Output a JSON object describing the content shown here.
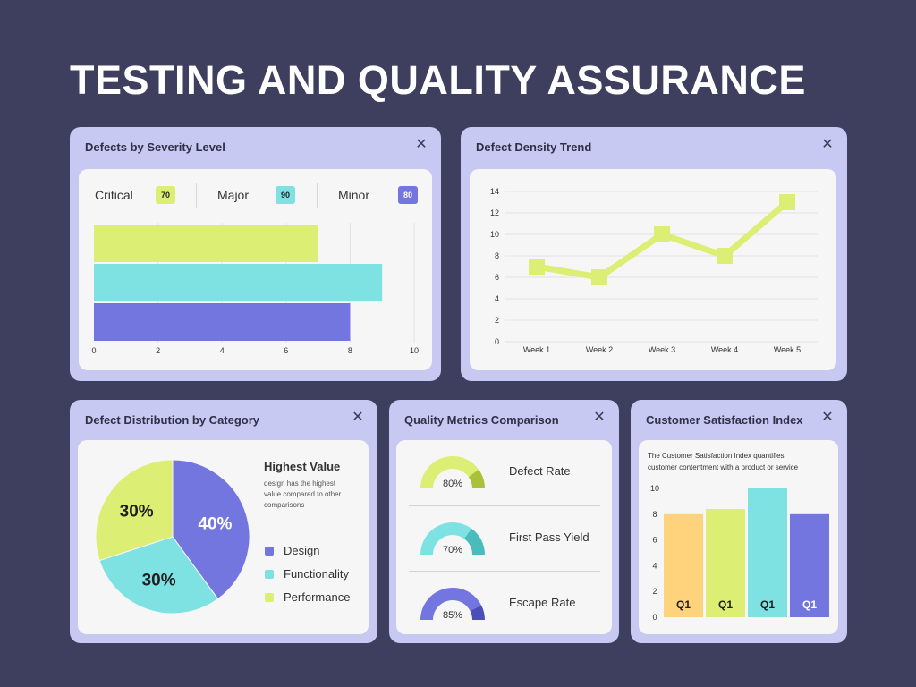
{
  "title": "TESTING AND QUALITY ASSURANCE",
  "colors": {
    "background": "#3e3f5e",
    "card": "#c8c9f3",
    "lime": "#dcee74",
    "cyan": "#7ee2e2",
    "indigo": "#7476e0",
    "orange": "#ffd27c"
  },
  "close_icon": "close-icon",
  "severity": {
    "title": "Defects by Severity Level",
    "legend": [
      {
        "label": "Critical",
        "badge": "70",
        "color": "#dcee74"
      },
      {
        "label": "Major",
        "badge": "90",
        "color": "#7ee2e2"
      },
      {
        "label": "Minor",
        "badge": "80",
        "color": "#7476e0"
      }
    ]
  },
  "density": {
    "title": "Defect Density Trend"
  },
  "distribution": {
    "title": "Defect Distribution by Category",
    "highlight_title": "Highest Value",
    "highlight_text_1": "design has the highest",
    "highlight_text_2": "value compared to other",
    "highlight_text_3": "comparisons",
    "legend": [
      {
        "label": "Design",
        "color": "#7476e0"
      },
      {
        "label": "Functionality",
        "color": "#7ee2e2"
      },
      {
        "label": "Performance",
        "color": "#dcee74"
      }
    ]
  },
  "quality": {
    "title": "Quality Metrics Comparison"
  },
  "satisfaction": {
    "title": "Customer Satisfaction Index",
    "description_1": "The Customer Satisfaction Index quantifies",
    "description_2": "customer contentment with a product or service"
  },
  "chart_data": [
    {
      "type": "bar",
      "orientation": "horizontal",
      "categories": [
        "Critical",
        "Major",
        "Minor"
      ],
      "values": [
        7,
        9,
        8
      ],
      "colors": [
        "#dcee74",
        "#7ee2e2",
        "#7476e0"
      ],
      "xlim": [
        0,
        10
      ],
      "xticks": [
        "0",
        "2",
        "4",
        "6",
        "8",
        "10"
      ],
      "grid": true
    },
    {
      "type": "line",
      "x": [
        "Week 1",
        "Week 2",
        "Week 3",
        "Week 4",
        "Week 5"
      ],
      "values": [
        7,
        6,
        10,
        8,
        13
      ],
      "ylim": [
        0,
        14
      ],
      "yticks": [
        "0",
        "2",
        "4",
        "6",
        "8",
        "10",
        "12",
        "14"
      ],
      "color": "#dcee74",
      "grid": true
    },
    {
      "type": "pie",
      "categories": [
        "Design",
        "Functionality",
        "Performance"
      ],
      "values": [
        40,
        30,
        30
      ],
      "labels": [
        "40%",
        "30%",
        "30%"
      ],
      "colors": [
        "#7476e0",
        "#7ee2e2",
        "#dcee74"
      ]
    },
    {
      "type": "gauge",
      "items": [
        {
          "label": "Defect Rate",
          "value": 80,
          "display": "80%",
          "color": "#dcee74",
          "accent": "#a9c23a"
        },
        {
          "label": "First Pass Yield",
          "value": 70,
          "display": "70%",
          "color": "#7ee2e2",
          "accent": "#49bcbc"
        },
        {
          "label": "Escape Rate",
          "value": 85,
          "display": "85%",
          "color": "#7476e0",
          "accent": "#4b4db8"
        }
      ]
    },
    {
      "type": "bar",
      "categories": [
        "Q1",
        "Q1",
        "Q1",
        "Q1"
      ],
      "values": [
        8,
        8.4,
        10,
        8
      ],
      "colors": [
        "#ffd27c",
        "#dcee74",
        "#7ee2e2",
        "#7476e0"
      ],
      "ylim": [
        0,
        10
      ],
      "yticks": [
        "0",
        "2",
        "4",
        "6",
        "8",
        "10"
      ]
    }
  ]
}
